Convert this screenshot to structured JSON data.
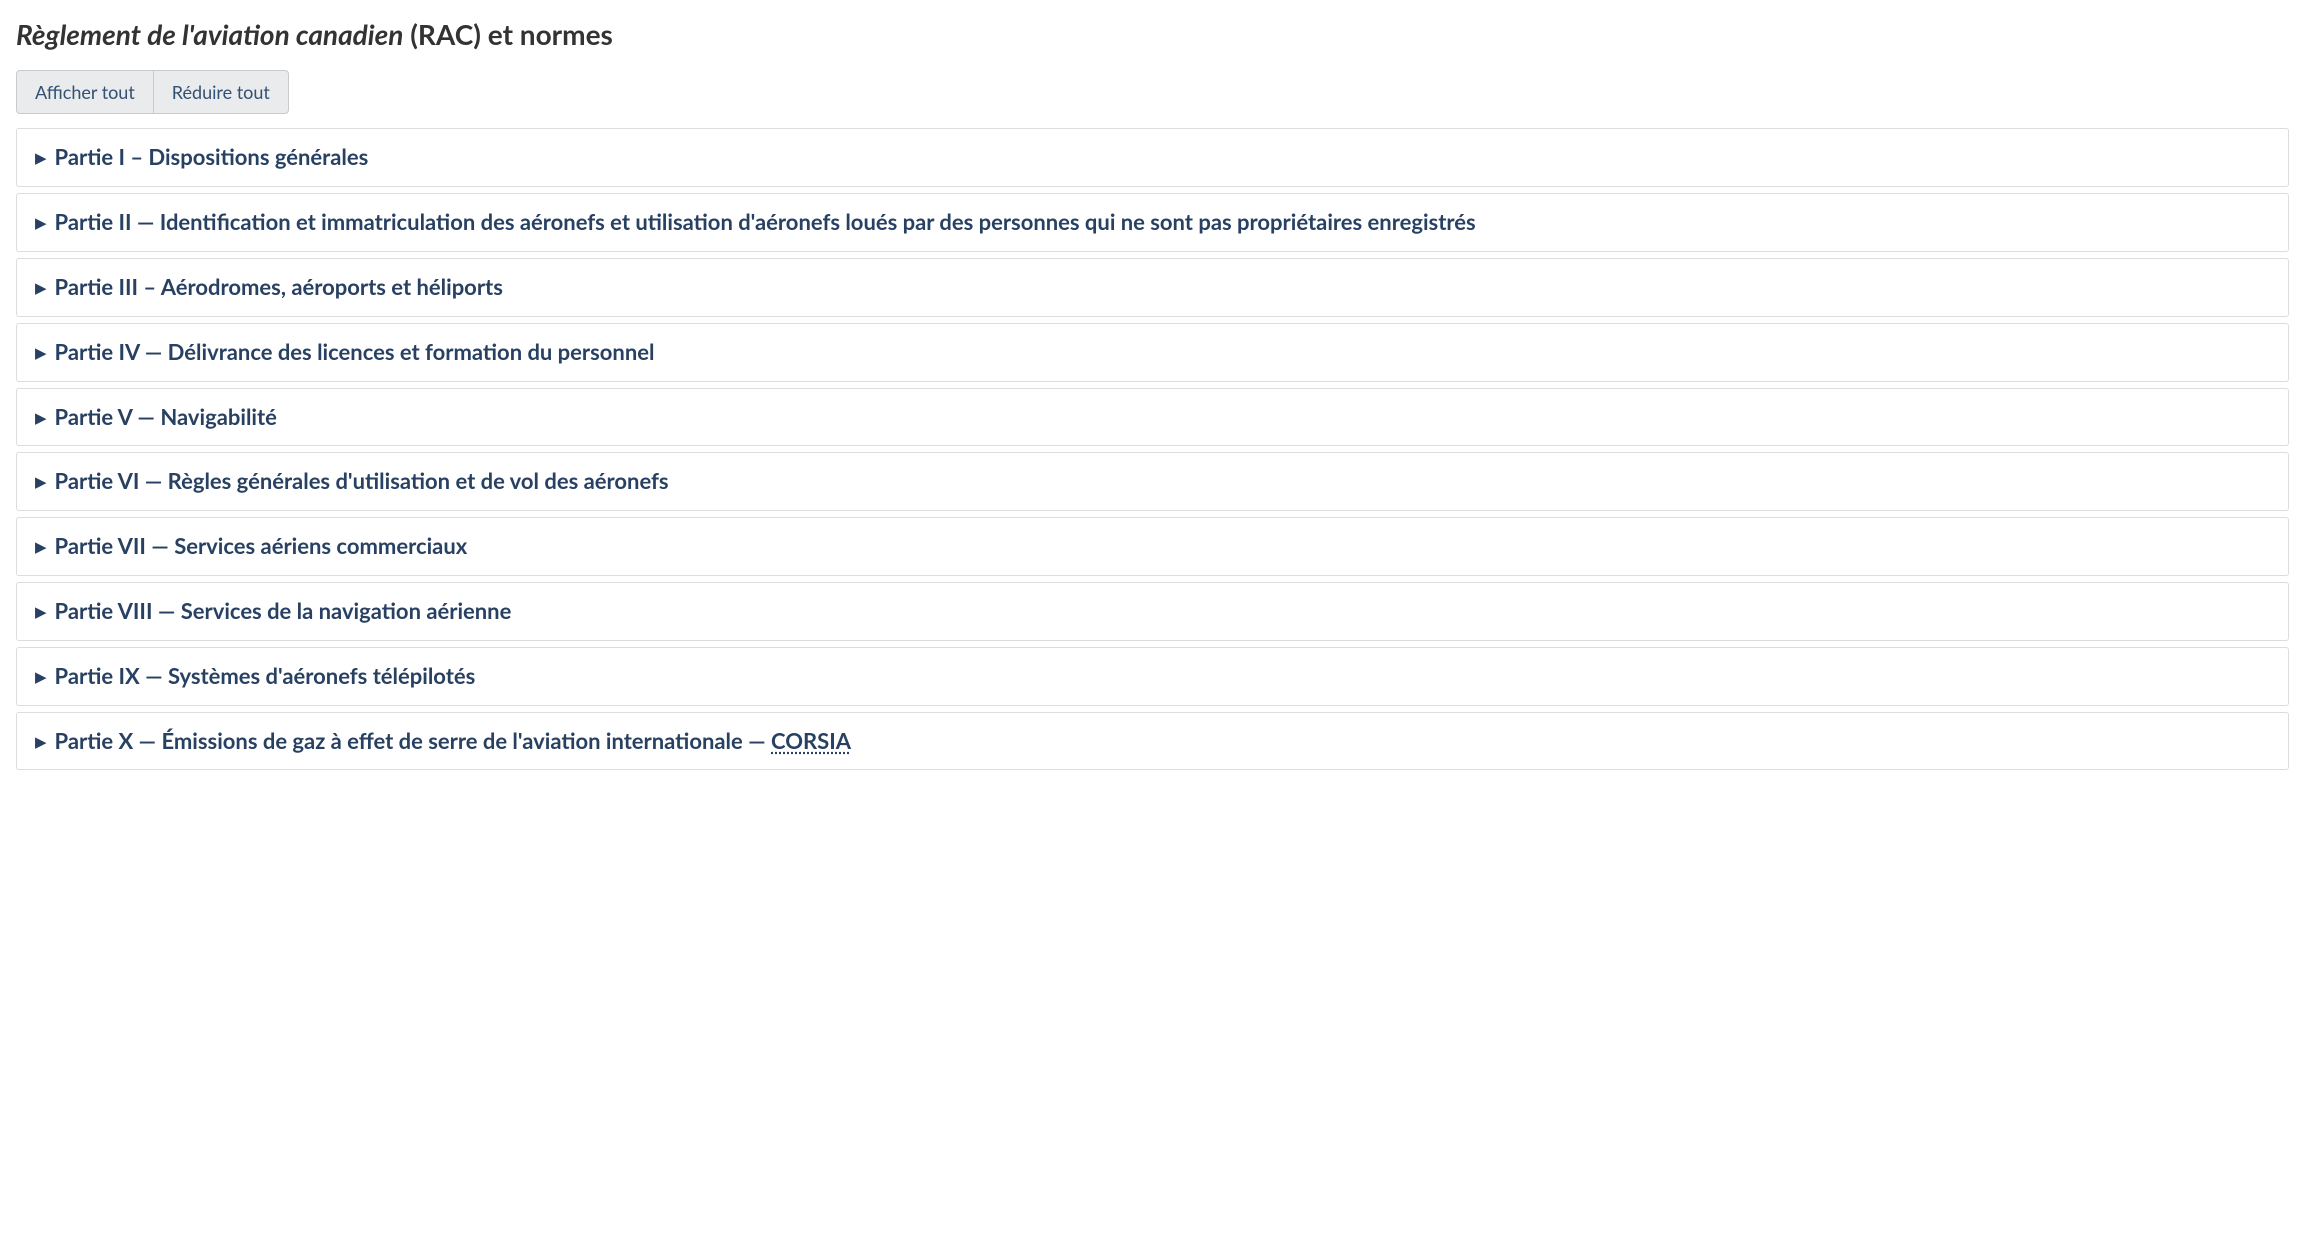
{
  "header": {
    "title_italic": "Règlement de l'aviation canadien",
    "title_rest": " (RAC) et normes"
  },
  "buttons": {
    "expand_all": "Afficher tout",
    "collapse_all": "Réduire tout"
  },
  "accordion": {
    "items": [
      {
        "label": "Partie I – Dispositions générales",
        "suffix_underline": ""
      },
      {
        "label": "Partie II — Identification et immatriculation des aéronefs et utilisation d'aéronefs loués par des personnes qui ne sont pas propriétaires enregistrés",
        "suffix_underline": ""
      },
      {
        "label": "Partie III – Aérodromes, aéroports et héliports",
        "suffix_underline": ""
      },
      {
        "label": "Partie IV — Délivrance des licences et formation du personnel",
        "suffix_underline": ""
      },
      {
        "label": "Partie V — Navigabilité",
        "suffix_underline": ""
      },
      {
        "label": "Partie VI — Règles générales d'utilisation et de vol des aéronefs",
        "suffix_underline": ""
      },
      {
        "label": "Partie VII — Services aériens commerciaux",
        "suffix_underline": ""
      },
      {
        "label": "Partie VIII — Services de la navigation aérienne",
        "suffix_underline": ""
      },
      {
        "label": "Partie IX — Systèmes d'aéronefs télépilotés",
        "suffix_underline": ""
      },
      {
        "label": "Partie X — Émissions de gaz à effet de serre de l'aviation internationale — ",
        "suffix_underline": "CORSIA"
      }
    ]
  },
  "styling": {
    "title_color": "#333333",
    "title_fontsize": 28,
    "accent_color": "#284162",
    "button_bg": "#eaebed",
    "button_border": "#c8cacc",
    "button_text": "#335075",
    "item_border": "#dddddd",
    "item_bg": "#ffffff",
    "item_fontsize": 22,
    "background": "#ffffff"
  }
}
